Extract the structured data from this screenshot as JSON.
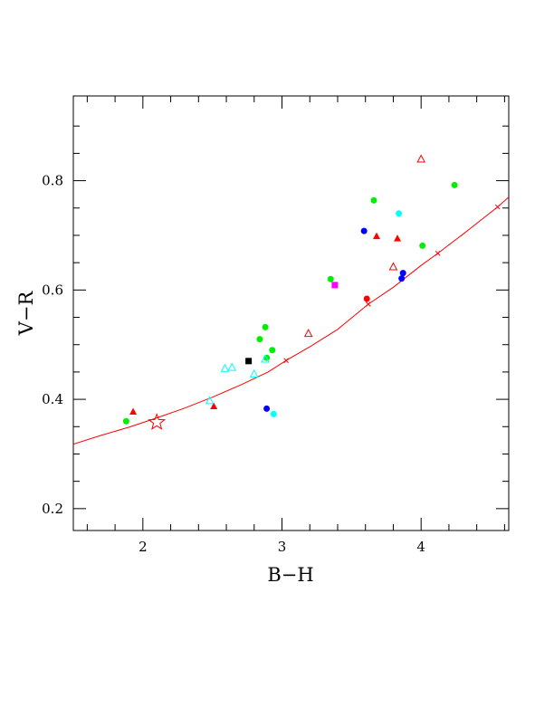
{
  "chart_data": {
    "type": "scatter",
    "xlabel": "B−H",
    "ylabel": "V−R",
    "xlim": [
      1.5,
      4.63
    ],
    "ylim": [
      0.16,
      0.955
    ],
    "xticks_major": [
      {
        "value": 2,
        "label": "2"
      },
      {
        "value": 3,
        "label": "3"
      },
      {
        "value": 4,
        "label": "4"
      }
    ],
    "xticks_minor": [
      1.6,
      1.8,
      2.2,
      2.4,
      2.6,
      2.8,
      3.2,
      3.4,
      3.6,
      3.8,
      4.2,
      4.4,
      4.6
    ],
    "yticks_major": [
      {
        "value": 0.2,
        "label": "0.2"
      },
      {
        "value": 0.4,
        "label": "0.4"
      },
      {
        "value": 0.6,
        "label": "0.6"
      },
      {
        "value": 0.8,
        "label": "0.8"
      }
    ],
    "yticks_minor": [
      0.25,
      0.3,
      0.35,
      0.45,
      0.5,
      0.55,
      0.65,
      0.7,
      0.75,
      0.85,
      0.9
    ],
    "grid": false,
    "curve": {
      "color": "#ff0000",
      "points": [
        [
          1.5,
          0.318
        ],
        [
          1.7,
          0.334
        ],
        [
          1.9,
          0.349
        ],
        [
          2.1,
          0.366
        ],
        [
          2.3,
          0.384
        ],
        [
          2.5,
          0.404
        ],
        [
          2.7,
          0.426
        ],
        [
          2.9,
          0.45
        ],
        [
          3.03,
          0.471
        ],
        [
          3.2,
          0.496
        ],
        [
          3.4,
          0.528
        ],
        [
          3.62,
          0.574
        ],
        [
          3.8,
          0.605
        ],
        [
          4.0,
          0.645
        ],
        [
          4.12,
          0.667
        ],
        [
          4.3,
          0.702
        ],
        [
          4.55,
          0.752
        ],
        [
          4.63,
          0.77
        ]
      ]
    },
    "series": [
      {
        "marker": "circle",
        "color": "#00ee00",
        "points": [
          [
            1.88,
            0.36
          ],
          [
            2.84,
            0.51
          ],
          [
            2.88,
            0.532
          ],
          [
            2.89,
            0.476
          ],
          [
            2.93,
            0.49
          ],
          [
            3.35,
            0.62
          ],
          [
            3.66,
            0.764
          ],
          [
            4.01,
            0.681
          ],
          [
            4.24,
            0.792
          ]
        ]
      },
      {
        "marker": "circle",
        "color": "#00ffff",
        "points": [
          [
            2.94,
            0.373
          ],
          [
            3.84,
            0.74
          ]
        ]
      },
      {
        "marker": "circle",
        "color": "#0000ff",
        "points": [
          [
            2.89,
            0.383
          ],
          [
            3.59,
            0.708
          ],
          [
            3.86,
            0.621
          ],
          [
            3.87,
            0.631
          ]
        ]
      },
      {
        "marker": "circle",
        "color": "#ff0000",
        "points": [
          [
            3.61,
            0.584
          ]
        ]
      },
      {
        "marker": "triangle-filled",
        "color": "#ff0000",
        "points": [
          [
            1.93,
            0.377
          ],
          [
            2.51,
            0.387
          ],
          [
            3.68,
            0.698
          ],
          [
            3.83,
            0.694
          ]
        ]
      },
      {
        "marker": "triangle-open",
        "color": "#ff0000",
        "points": [
          [
            3.19,
            0.52
          ],
          [
            3.8,
            0.642
          ],
          [
            4.0,
            0.839
          ]
        ]
      },
      {
        "marker": "triangle-open",
        "color": "#00ffff",
        "points": [
          [
            2.48,
            0.397
          ],
          [
            2.59,
            0.456
          ],
          [
            2.64,
            0.458
          ],
          [
            2.8,
            0.446
          ],
          [
            2.88,
            0.473
          ]
        ]
      },
      {
        "marker": "square",
        "color": "#000000",
        "points": [
          [
            2.76,
            0.47
          ]
        ]
      },
      {
        "marker": "square",
        "color": "#ff00ff",
        "points": [
          [
            3.38,
            0.609
          ]
        ]
      },
      {
        "marker": "star-open",
        "color": "#ff0000",
        "points": [
          [
            2.1,
            0.358
          ]
        ]
      },
      {
        "marker": "cross",
        "color": "#ff0000",
        "points": [
          [
            3.03,
            0.471
          ],
          [
            3.62,
            0.574
          ],
          [
            4.12,
            0.667
          ],
          [
            4.55,
            0.752
          ]
        ]
      }
    ]
  }
}
